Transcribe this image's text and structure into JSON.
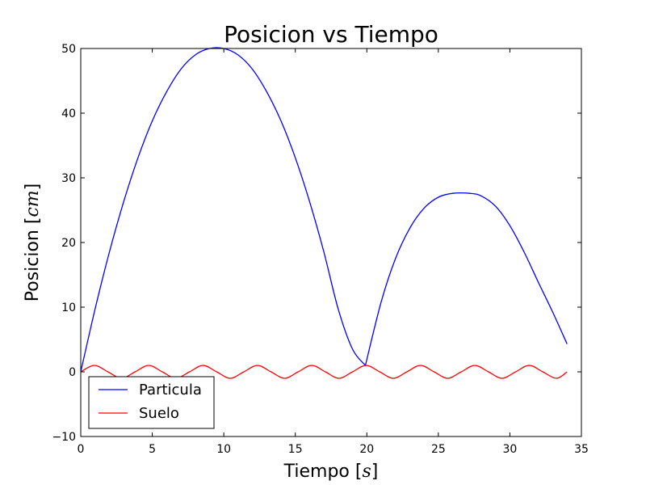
{
  "chart_data": {
    "type": "line",
    "title": "Posicion vs Tiempo",
    "xlabel": {
      "prefix": "Tiempo [",
      "math": "s",
      "suffix": "]"
    },
    "ylabel": {
      "prefix": "Posicion [",
      "math": "cm",
      "suffix": "]"
    },
    "xlim": [
      0,
      35
    ],
    "ylim": [
      -10,
      50
    ],
    "xticks": [
      "0",
      "5",
      "10",
      "15",
      "20",
      "25",
      "30",
      "35"
    ],
    "yticks": [
      "−10",
      "0",
      "10",
      "20",
      "30",
      "40",
      "50"
    ],
    "grid": false,
    "legend_position": "lower-left",
    "series": [
      {
        "name": "Particula",
        "color": "#0000ff",
        "x": [
          0,
          1,
          2,
          3,
          4,
          5,
          6,
          7,
          8,
          9,
          10,
          11,
          12,
          13,
          14,
          15,
          16,
          17,
          18,
          19,
          19.9,
          21,
          22,
          23,
          24,
          25,
          26,
          27.2,
          28,
          29,
          30,
          31,
          32,
          33,
          34
        ],
        "y": [
          0,
          9.7,
          18.5,
          26.3,
          33.1,
          38.8,
          43.3,
          46.8,
          49.0,
          50.0,
          50.0,
          49.0,
          46.8,
          43.3,
          38.8,
          33.1,
          26.3,
          18.5,
          9.7,
          3.5,
          1.0,
          10.8,
          17.5,
          22.2,
          25.3,
          27.0,
          27.6,
          27.6,
          27.2,
          25.6,
          22.6,
          18.5,
          13.8,
          9.2,
          4.3
        ]
      },
      {
        "name": "Suelo",
        "color": "#ff0000",
        "x": [
          0,
          0.95,
          1.9,
          2.85,
          3.8,
          4.75,
          5.7,
          6.65,
          7.6,
          8.55,
          9.5,
          10.45,
          11.4,
          12.35,
          13.3,
          14.25,
          15.2,
          16.15,
          17.1,
          18.05,
          19.0,
          19.95,
          20.9,
          21.85,
          22.8,
          23.75,
          24.7,
          25.65,
          26.6,
          27.55,
          28.5,
          29.45,
          30.4,
          31.35,
          32.3,
          33.25,
          34.0
        ],
        "y": [
          0,
          1,
          0,
          -1,
          0,
          1,
          0,
          -1,
          0,
          1,
          0,
          -1,
          0,
          1,
          0,
          -1,
          0,
          1,
          0,
          -1,
          0,
          1,
          0,
          -1,
          0,
          1,
          0,
          -1,
          0,
          1,
          0,
          -1,
          0,
          1,
          0,
          -1,
          0
        ]
      }
    ]
  }
}
